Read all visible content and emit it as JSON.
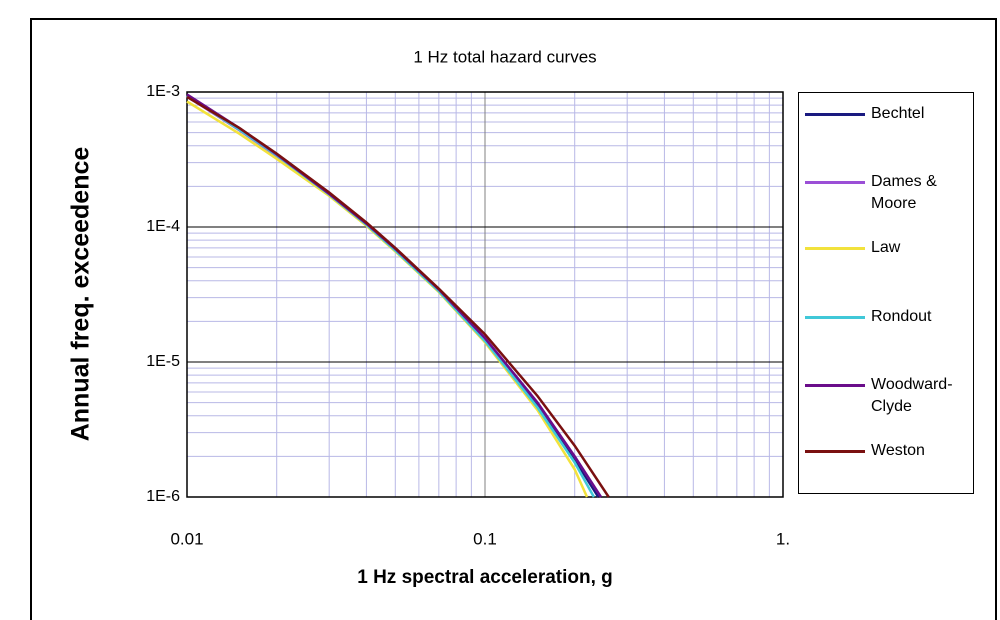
{
  "chart_data": {
    "type": "line",
    "title": "1 Hz total hazard curves",
    "x_label": "1 Hz spectral acceleration, g",
    "y_label": "Annual freq. exceedence",
    "xscale": "log",
    "yscale": "log",
    "grid": true,
    "legend": "right",
    "xlim": [
      0.01,
      1
    ],
    "xticks": [
      0.01,
      0.1,
      {
        "value": 1,
        "label": "1."
      }
    ],
    "ylim": [
      1e-06,
      0.001
    ],
    "yticks": [
      {
        "value": 0.001,
        "label": "1E-3"
      },
      {
        "value": 0.0001,
        "label": "1E-4"
      },
      {
        "value": 1e-05,
        "label": "1E-5"
      },
      {
        "value": 1e-06,
        "label": "1E-6"
      }
    ],
    "series": [
      {
        "name": "Bechtel",
        "color": "#1a1a80",
        "x": [
          0.01,
          0.015,
          0.02,
          0.03,
          0.04,
          0.05,
          0.07,
          0.1,
          0.15,
          0.2,
          0.24
        ],
        "values": [
          0.00095,
          0.00053,
          0.00034,
          0.000175,
          0.000105,
          6.8e-05,
          3.4e-05,
          1.45e-05,
          4.8e-06,
          1.9e-06,
          1e-06
        ]
      },
      {
        "name": "Dames & Moore",
        "color": "#9b4fd6",
        "x": [
          0.01,
          0.015,
          0.02,
          0.03,
          0.04,
          0.05,
          0.07,
          0.1,
          0.15,
          0.2,
          0.245
        ],
        "values": [
          0.00093,
          0.00052,
          0.000335,
          0.000172,
          0.000104,
          6.8e-05,
          3.4e-05,
          1.5e-05,
          5e-06,
          2e-06,
          1e-06
        ]
      },
      {
        "name": "Law",
        "color": "#f2e23c",
        "x": [
          0.01,
          0.015,
          0.02,
          0.03,
          0.04,
          0.05,
          0.07,
          0.1,
          0.15,
          0.2,
          0.22
        ],
        "values": [
          0.00085,
          0.00049,
          0.00032,
          0.00017,
          0.000102,
          6.6e-05,
          3.3e-05,
          1.4e-05,
          4.4e-06,
          1.6e-06,
          1e-06
        ]
      },
      {
        "name": "Rondout",
        "color": "#40c8d8",
        "x": [
          0.01,
          0.015,
          0.02,
          0.03,
          0.04,
          0.05,
          0.07,
          0.1,
          0.15,
          0.2,
          0.232
        ],
        "values": [
          0.00094,
          0.000525,
          0.00034,
          0.000174,
          0.000104,
          6.7e-05,
          3.35e-05,
          1.43e-05,
          4.6e-06,
          1.8e-06,
          1e-06
        ]
      },
      {
        "name": "Woodward-Clyde",
        "color": "#6a0d8a",
        "x": [
          0.01,
          0.015,
          0.02,
          0.03,
          0.04,
          0.05,
          0.07,
          0.1,
          0.15,
          0.2,
          0.245
        ],
        "values": [
          0.00096,
          0.00054,
          0.000345,
          0.000176,
          0.000106,
          6.9e-05,
          3.45e-05,
          1.5e-05,
          5e-06,
          2e-06,
          1e-06
        ]
      },
      {
        "name": "Weston",
        "color": "#7a1010",
        "x": [
          0.01,
          0.015,
          0.02,
          0.03,
          0.04,
          0.05,
          0.07,
          0.1,
          0.15,
          0.2,
          0.26
        ],
        "values": [
          0.00092,
          0.00054,
          0.00035,
          0.00018,
          0.000108,
          7e-05,
          3.5e-05,
          1.6e-05,
          5.6e-06,
          2.4e-06,
          1e-06
        ]
      }
    ]
  }
}
